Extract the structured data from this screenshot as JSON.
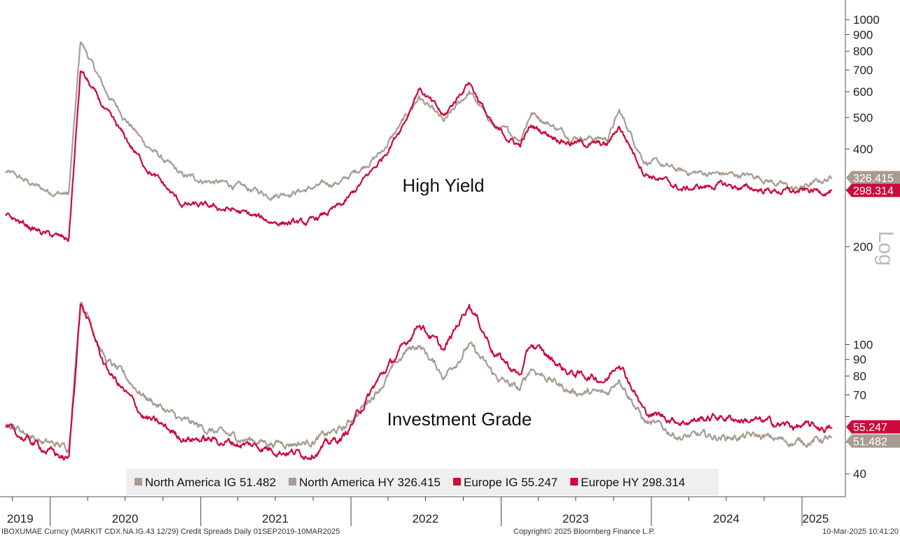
{
  "chart_data": {
    "type": "line",
    "scale": "log",
    "y_ticks": [
      40,
      50,
      60,
      70,
      80,
      90,
      100,
      200,
      300,
      400,
      500,
      600,
      700,
      800,
      900,
      1000
    ],
    "y_tick_labels": [
      "40",
      "",
      "",
      "70",
      "80",
      "90",
      "100",
      "200",
      "",
      "400",
      "500",
      "600",
      "700",
      "800",
      "900",
      "1000"
    ],
    "ylim": [
      34,
      1150
    ],
    "axis_label": "Log",
    "x_labels": [
      "2019",
      "2020",
      "2021",
      "2022",
      "2023",
      "2024",
      "2025"
    ],
    "annotations": [
      "High Yield",
      "Investment Grade"
    ],
    "series": [
      {
        "name": "North America IG",
        "last": "51.482",
        "color": "#a89c92",
        "points": [
          [
            "2019-09",
            58
          ],
          [
            "2019-12",
            50
          ],
          [
            "2020-02",
            48
          ],
          [
            "2020-03",
            140
          ],
          [
            "2020-05",
            90
          ],
          [
            "2020-08",
            70
          ],
          [
            "2020-11",
            58
          ],
          [
            "2021-03",
            52
          ],
          [
            "2021-06",
            50
          ],
          [
            "2021-09",
            50
          ],
          [
            "2021-12",
            55
          ],
          [
            "2022-03",
            75
          ],
          [
            "2022-05",
            95
          ],
          [
            "2022-06",
            100
          ],
          [
            "2022-08",
            80
          ],
          [
            "2022-10",
            100
          ],
          [
            "2022-12",
            80
          ],
          [
            "2023-02",
            72
          ],
          [
            "2023-03",
            85
          ],
          [
            "2023-06",
            72
          ],
          [
            "2023-09",
            70
          ],
          [
            "2023-10",
            80
          ],
          [
            "2023-12",
            58
          ],
          [
            "2024-03",
            52
          ],
          [
            "2024-06",
            52
          ],
          [
            "2024-09",
            52
          ],
          [
            "2024-12",
            50
          ],
          [
            "2025-03",
            51.482
          ]
        ]
      },
      {
        "name": "North America HY",
        "last": "326.415",
        "color": "#a89c92",
        "points": [
          [
            "2019-09",
            340
          ],
          [
            "2019-12",
            300
          ],
          [
            "2020-02",
            290
          ],
          [
            "2020-03",
            860
          ],
          [
            "2020-05",
            600
          ],
          [
            "2020-08",
            420
          ],
          [
            "2020-11",
            330
          ],
          [
            "2021-03",
            310
          ],
          [
            "2021-06",
            290
          ],
          [
            "2021-09",
            300
          ],
          [
            "2021-12",
            320
          ],
          [
            "2022-03",
            390
          ],
          [
            "2022-05",
            500
          ],
          [
            "2022-06",
            580
          ],
          [
            "2022-08",
            480
          ],
          [
            "2022-10",
            600
          ],
          [
            "2022-12",
            470
          ],
          [
            "2023-02",
            430
          ],
          [
            "2023-03",
            520
          ],
          [
            "2023-06",
            440
          ],
          [
            "2023-09",
            430
          ],
          [
            "2023-10",
            520
          ],
          [
            "2023-12",
            370
          ],
          [
            "2024-03",
            340
          ],
          [
            "2024-06",
            335
          ],
          [
            "2024-09",
            330
          ],
          [
            "2024-12",
            300
          ],
          [
            "2025-03",
            326.415
          ]
        ]
      },
      {
        "name": "Europe IG",
        "last": "55.247",
        "color": "#cc0a3c",
        "points": [
          [
            "2019-09",
            55
          ],
          [
            "2019-12",
            48
          ],
          [
            "2020-02",
            44
          ],
          [
            "2020-03",
            135
          ],
          [
            "2020-05",
            85
          ],
          [
            "2020-08",
            60
          ],
          [
            "2020-11",
            52
          ],
          [
            "2021-03",
            50
          ],
          [
            "2021-06",
            48
          ],
          [
            "2021-09",
            46
          ],
          [
            "2021-12",
            52
          ],
          [
            "2022-03",
            80
          ],
          [
            "2022-05",
            100
          ],
          [
            "2022-06",
            118
          ],
          [
            "2022-08",
            95
          ],
          [
            "2022-10",
            135
          ],
          [
            "2022-12",
            95
          ],
          [
            "2023-02",
            80
          ],
          [
            "2023-03",
            100
          ],
          [
            "2023-06",
            82
          ],
          [
            "2023-09",
            78
          ],
          [
            "2023-10",
            90
          ],
          [
            "2023-12",
            62
          ],
          [
            "2024-03",
            58
          ],
          [
            "2024-06",
            60
          ],
          [
            "2024-09",
            58
          ],
          [
            "2024-12",
            56
          ],
          [
            "2025-03",
            55.247
          ]
        ]
      },
      {
        "name": "Europe HY",
        "last": "298.314",
        "color": "#cc0a3c",
        "points": [
          [
            "2019-09",
            250
          ],
          [
            "2019-12",
            220
          ],
          [
            "2020-02",
            210
          ],
          [
            "2020-03",
            700
          ],
          [
            "2020-05",
            520
          ],
          [
            "2020-08",
            360
          ],
          [
            "2020-11",
            270
          ],
          [
            "2021-03",
            260
          ],
          [
            "2021-06",
            240
          ],
          [
            "2021-09",
            235
          ],
          [
            "2021-12",
            270
          ],
          [
            "2022-03",
            370
          ],
          [
            "2022-05",
            500
          ],
          [
            "2022-06",
            620
          ],
          [
            "2022-08",
            500
          ],
          [
            "2022-10",
            650
          ],
          [
            "2022-12",
            460
          ],
          [
            "2023-02",
            410
          ],
          [
            "2023-03",
            470
          ],
          [
            "2023-06",
            420
          ],
          [
            "2023-09",
            410
          ],
          [
            "2023-10",
            470
          ],
          [
            "2023-12",
            340
          ],
          [
            "2024-03",
            300
          ],
          [
            "2024-06",
            310
          ],
          [
            "2024-09",
            300
          ],
          [
            "2024-12",
            295
          ],
          [
            "2025-03",
            298.314
          ]
        ]
      }
    ]
  },
  "legend": [
    {
      "text": "North America IG 51.482",
      "color": "#a89c92"
    },
    {
      "text": "North America HY 326.415",
      "color": "#a89c92"
    },
    {
      "text": "Europe IG 55.247",
      "color": "#cc0a3c"
    },
    {
      "text": "Europe HY 298.314",
      "color": "#cc0a3c"
    }
  ],
  "last_value_tags": [
    {
      "text": "326.415",
      "value": 326.415,
      "color": "#a89c92"
    },
    {
      "text": "298.314",
      "value": 298.314,
      "color": "#cc0a3c"
    },
    {
      "text": "55.247",
      "value": 55.247,
      "color": "#cc0a3c"
    },
    {
      "text": "51.482",
      "value": 51.482,
      "color": "#a89c92"
    }
  ],
  "footer": {
    "left": "IBOXUMAE Curncy (MARKIT CDX.NA.IG.43 12/29) Credit Spreads  Daily 01SEP2019-10MAR2025",
    "middle": "Copyright© 2025 Bloomberg Finance L.P.",
    "right": "10-Mar-2025 10:41:20"
  }
}
